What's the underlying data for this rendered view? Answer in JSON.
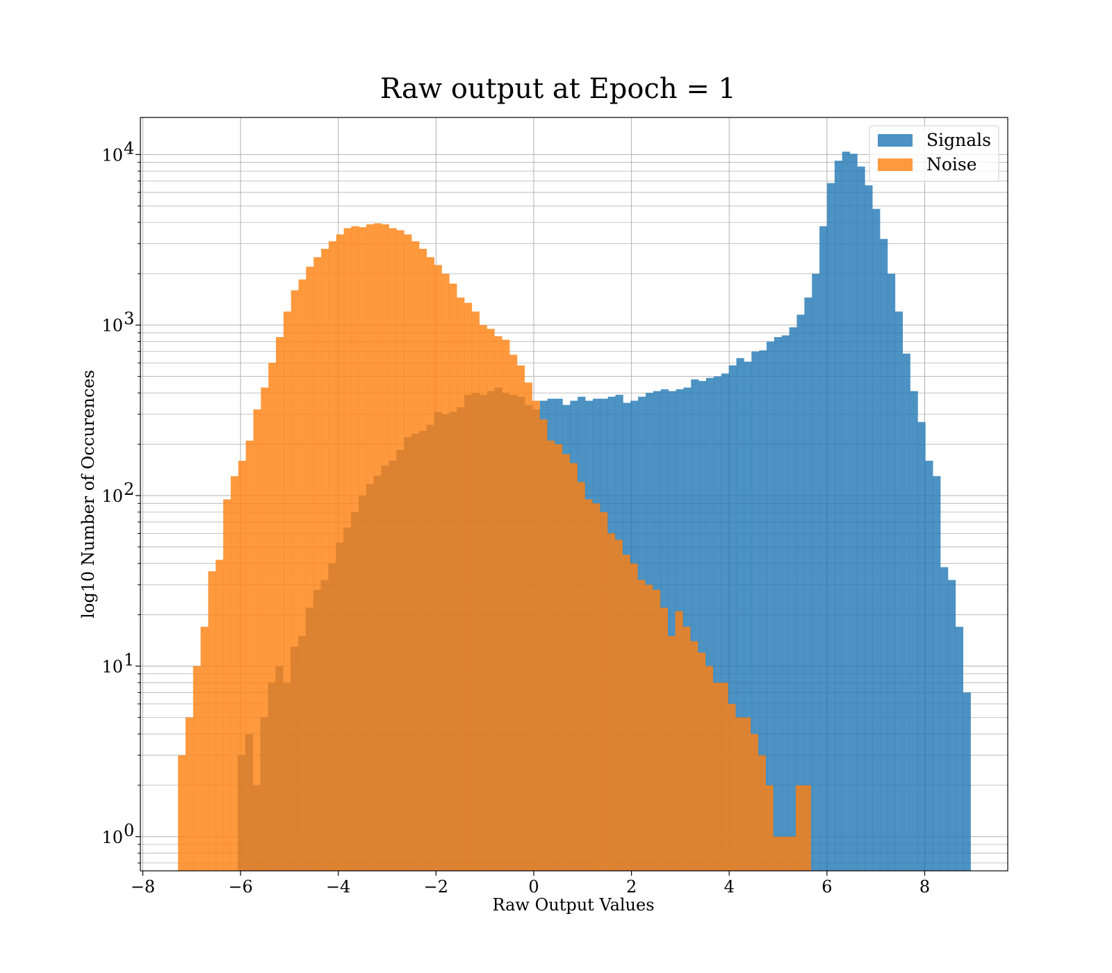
{
  "chart_data": {
    "type": "bar",
    "title": "Raw output at Epoch = 1",
    "xlabel": "Raw Output Values",
    "ylabel": "log10 Number of Occurences",
    "y_scale": "log",
    "xlim": [
      -8.05,
      9.7
    ],
    "ylim": [
      0.63,
      16500
    ],
    "grid": true,
    "legend_position": "top-right",
    "x_ticks": [
      {
        "value": -8,
        "label": "−8"
      },
      {
        "value": -6,
        "label": "−6"
      },
      {
        "value": -4,
        "label": "−4"
      },
      {
        "value": -2,
        "label": "−2"
      },
      {
        "value": 0,
        "label": "0"
      },
      {
        "value": 2,
        "label": "2"
      },
      {
        "value": 4,
        "label": "4"
      },
      {
        "value": 6,
        "label": "6"
      },
      {
        "value": 8,
        "label": "8"
      }
    ],
    "y_ticks": [
      {
        "value": 1,
        "base": "10",
        "exp": "0"
      },
      {
        "value": 10,
        "base": "10",
        "exp": "1"
      },
      {
        "value": 100,
        "base": "10",
        "exp": "2"
      },
      {
        "value": 1000,
        "base": "10",
        "exp": "3"
      },
      {
        "value": 10000,
        "base": "10",
        "exp": "4"
      }
    ],
    "series": [
      {
        "name": "Signals",
        "color": "#1f77b4",
        "opacity": 0.8,
        "bin_edges": [
          -6.06,
          8.94
        ],
        "values": [
          3,
          4,
          2,
          5,
          8,
          10,
          8,
          13,
          15,
          22,
          28,
          32,
          40,
          53,
          65,
          80,
          100,
          117,
          131,
          150,
          160,
          185,
          220,
          230,
          240,
          260,
          310,
          300,
          310,
          330,
          390,
          400,
          390,
          410,
          430,
          400,
          390,
          380,
          340,
          320,
          360,
          370,
          370,
          340,
          360,
          380,
          360,
          370,
          370,
          380,
          390,
          350,
          360,
          380,
          400,
          410,
          420,
          410,
          420,
          430,
          480,
          470,
          490,
          500,
          520,
          580,
          640,
          610,
          700,
          710,
          800,
          850,
          870,
          970,
          1150,
          1450,
          2000,
          3800,
          6800,
          9200,
          10400,
          10100,
          8500,
          6600,
          4800,
          3200,
          2000,
          1200,
          680,
          410,
          270,
          160,
          130,
          38,
          32,
          17,
          7
        ],
        "y_floor": 0.63
      },
      {
        "name": "Noise",
        "color": "#ff7f0e",
        "opacity": 0.8,
        "bin_edges": [
          -7.28,
          5.67
        ],
        "values": [
          3,
          5,
          10,
          17,
          36,
          42,
          95,
          130,
          160,
          210,
          320,
          430,
          600,
          850,
          1200,
          1600,
          1850,
          2200,
          2500,
          2800,
          3100,
          3400,
          3700,
          3800,
          3750,
          3900,
          3950,
          3900,
          3700,
          3600,
          3400,
          3100,
          2800,
          2500,
          2250,
          2000,
          1750,
          1450,
          1350,
          1200,
          1000,
          950,
          860,
          820,
          670,
          580,
          460,
          360,
          280,
          210,
          200,
          175,
          155,
          120,
          95,
          90,
          80,
          60,
          55,
          45,
          40,
          32,
          30,
          28,
          22,
          15,
          21,
          17,
          14,
          12,
          10,
          8,
          8,
          6,
          5,
          5,
          4,
          3,
          2,
          1,
          1,
          1,
          2,
          2
        ],
        "y_floor": 0.63
      }
    ]
  }
}
